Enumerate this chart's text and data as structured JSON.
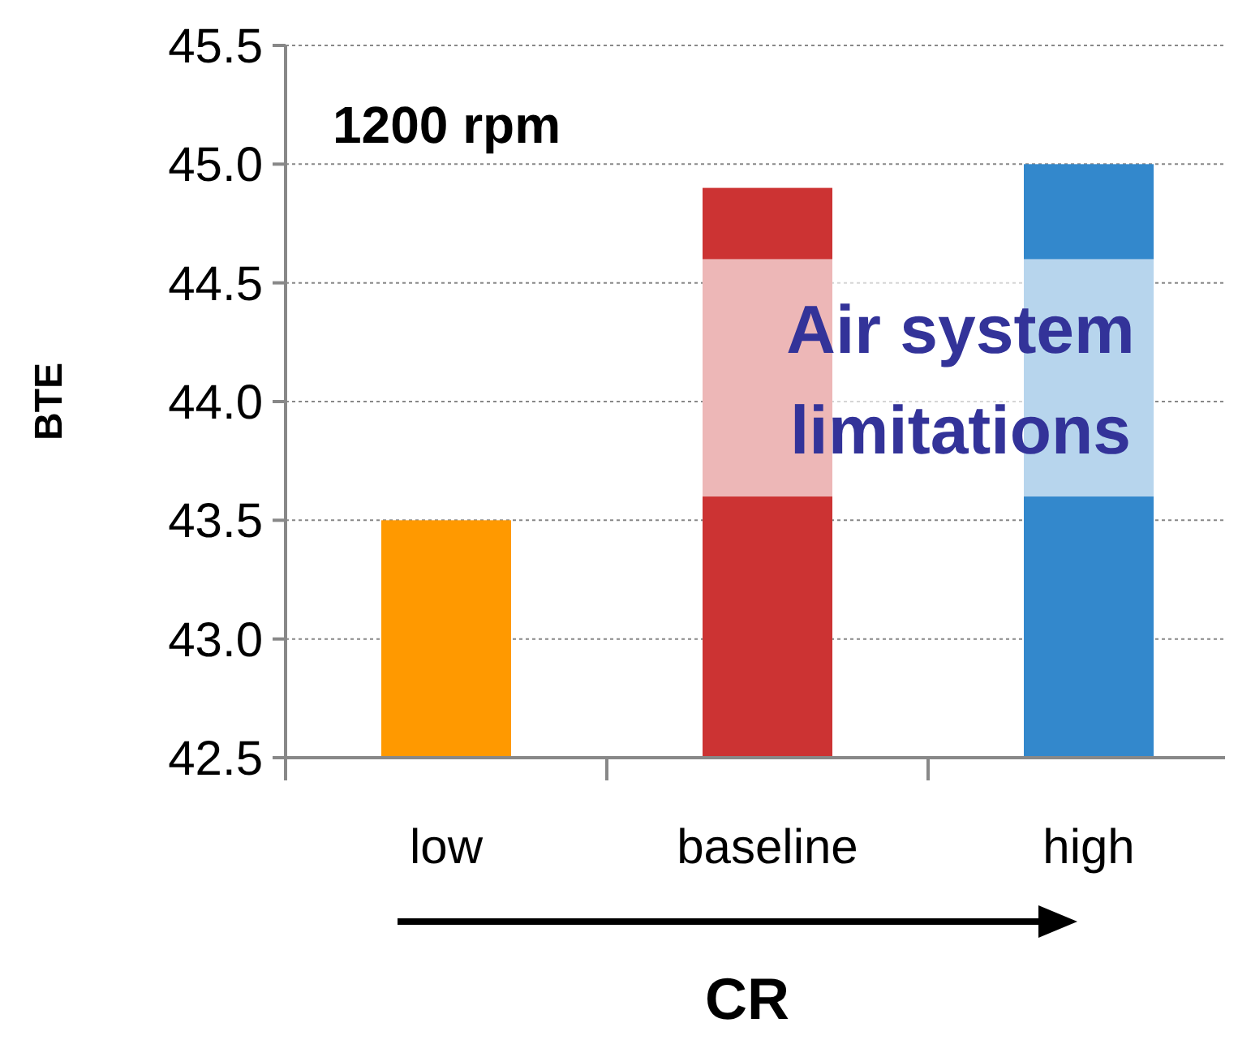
{
  "chart_data": {
    "type": "bar",
    "xlabel": "CR",
    "ylabel": "BTE",
    "categories": [
      "low",
      "baseline",
      "high"
    ],
    "values": [
      43.5,
      44.9,
      45.0
    ],
    "colors": [
      "#ff9900",
      "#cc3333",
      "#3388cc"
    ],
    "ylim": [
      42.5,
      45.5
    ],
    "yticks": [
      {
        "value": 42.5,
        "label": "42.5"
      },
      {
        "value": 43,
        "label": "43.0"
      },
      {
        "value": 43.5,
        "label": "43.5"
      },
      {
        "value": 44,
        "label": "44.0"
      },
      {
        "value": 44.5,
        "label": "44.5"
      },
      {
        "value": 45,
        "label": "45.0"
      },
      {
        "value": 45.5,
        "label": "45.5"
      }
    ],
    "grid": "y",
    "bands": [
      {
        "axis": "y",
        "from": 43.6,
        "to": 44.6,
        "label": "Air system limitations",
        "color": "#ffffff"
      }
    ],
    "annotations": [
      "1200 rpm"
    ]
  }
}
